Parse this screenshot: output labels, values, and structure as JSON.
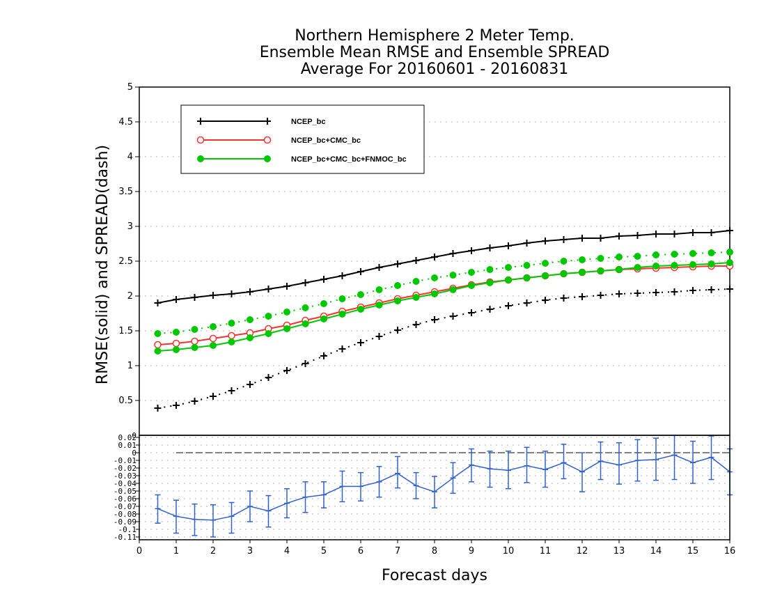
{
  "chart_data": [
    {
      "type": "line",
      "title_lines": [
        "Northern Hemisphere 2 Meter Temp.",
        "Ensemble Mean RMSE and Ensemble SPREAD",
        "Average For 20160601 - 20160831"
      ],
      "ylabel": "RMSE(solid)  and  SPREAD(dash)",
      "xlabel": "Forecast days",
      "ylim": [
        0,
        5
      ],
      "xlim": [
        0,
        16
      ],
      "yticks": [
        "0.5",
        "1",
        "1.5",
        "2",
        "2.5",
        "3",
        "3.5",
        "4",
        "4.5",
        "5"
      ],
      "xticks": [
        "0",
        "1",
        "2",
        "3",
        "4",
        "5",
        "6",
        "7",
        "8",
        "9",
        "10",
        "11",
        "12",
        "13",
        "14",
        "15",
        "16"
      ],
      "grid": true,
      "legend_position": "top-left",
      "x": [
        0.5,
        1,
        1.5,
        2,
        2.5,
        3,
        3.5,
        4,
        4.5,
        5,
        5.5,
        6,
        6.5,
        7,
        7.5,
        8,
        8.5,
        9,
        9.5,
        10,
        10.5,
        11,
        11.5,
        12,
        12.5,
        13,
        13.5,
        14,
        14.5,
        15,
        15.5,
        16
      ],
      "series": [
        {
          "name": "NCEP_bc",
          "color": "#000000",
          "marker": "plus",
          "rmse": [
            1.9,
            1.95,
            1.98,
            2.01,
            2.03,
            2.06,
            2.1,
            2.14,
            2.19,
            2.24,
            2.29,
            2.35,
            2.41,
            2.46,
            2.51,
            2.56,
            2.61,
            2.65,
            2.69,
            2.72,
            2.76,
            2.79,
            2.81,
            2.83,
            2.83,
            2.86,
            2.87,
            2.89,
            2.89,
            2.91,
            2.91,
            2.94
          ],
          "spread": [
            0.39,
            0.43,
            0.49,
            0.56,
            0.64,
            0.73,
            0.83,
            0.93,
            1.03,
            1.14,
            1.24,
            1.33,
            1.42,
            1.51,
            1.59,
            1.66,
            1.71,
            1.76,
            1.81,
            1.86,
            1.9,
            1.94,
            1.97,
            1.99,
            2.01,
            2.03,
            2.04,
            2.05,
            2.06,
            2.08,
            2.09,
            2.1
          ]
        },
        {
          "name": "NCEP_bc+CMC_bc",
          "color": "#ff3030",
          "marker": "open-circle",
          "rmse": [
            1.3,
            1.32,
            1.35,
            1.39,
            1.43,
            1.47,
            1.53,
            1.58,
            1.65,
            1.71,
            1.78,
            1.84,
            1.9,
            1.96,
            2.01,
            2.06,
            2.11,
            2.16,
            2.2,
            2.23,
            2.26,
            2.29,
            2.32,
            2.34,
            2.36,
            2.38,
            2.39,
            2.4,
            2.41,
            2.42,
            2.43,
            2.43
          ],
          "spread": []
        },
        {
          "name": "NCEP_bc+CMC_bc+FNMOC_bc",
          "color": "#00c800",
          "marker": "filled-circle",
          "rmse": [
            1.21,
            1.23,
            1.26,
            1.29,
            1.34,
            1.4,
            1.46,
            1.53,
            1.6,
            1.67,
            1.74,
            1.81,
            1.87,
            1.93,
            1.98,
            2.03,
            2.09,
            2.15,
            2.19,
            2.23,
            2.26,
            2.29,
            2.32,
            2.34,
            2.36,
            2.38,
            2.41,
            2.43,
            2.44,
            2.45,
            2.46,
            2.48
          ],
          "spread": [
            1.46,
            1.48,
            1.52,
            1.56,
            1.61,
            1.66,
            1.71,
            1.77,
            1.83,
            1.89,
            1.96,
            2.02,
            2.09,
            2.15,
            2.21,
            2.26,
            2.3,
            2.34,
            2.38,
            2.41,
            2.44,
            2.47,
            2.5,
            2.52,
            2.54,
            2.56,
            2.57,
            2.59,
            2.6,
            2.61,
            2.62,
            2.63
          ]
        }
      ]
    },
    {
      "type": "line",
      "ylim": [
        -0.11,
        0.02
      ],
      "yticks": [
        "-0.11",
        "-0.1",
        "-0.09",
        "-0.08",
        "-0.07",
        "-0.06",
        "-0.05",
        "-0.04",
        "-0.03",
        "-0.02",
        "-0.01",
        "0",
        "0.01",
        "0.02"
      ],
      "top_tick_label": "0",
      "grid": true,
      "series": [
        {
          "color": "#3060d0",
          "marker": "errorbar",
          "x": [
            0.5,
            1,
            1.5,
            2,
            2.5,
            3,
            3.5,
            4,
            4.5,
            5,
            5.5,
            6,
            6.5,
            7,
            7.5,
            8,
            8.5,
            9,
            9.5,
            10,
            10.5,
            11,
            11.5,
            12,
            12.5,
            13,
            13.5,
            14,
            14.5,
            15,
            15.5,
            16
          ],
          "values": [
            -0.073,
            -0.083,
            -0.087,
            -0.088,
            -0.083,
            -0.07,
            -0.076,
            -0.066,
            -0.058,
            -0.055,
            -0.044,
            -0.044,
            -0.038,
            -0.027,
            -0.043,
            -0.051,
            -0.033,
            -0.016,
            -0.021,
            -0.023,
            -0.017,
            -0.022,
            -0.013,
            -0.025,
            -0.011,
            -0.016,
            -0.01,
            -0.009,
            -0.003,
            -0.013,
            -0.006,
            -0.025
          ],
          "lower": [
            -0.092,
            -0.105,
            -0.108,
            -0.11,
            -0.105,
            -0.09,
            -0.097,
            -0.085,
            -0.078,
            -0.072,
            -0.064,
            -0.063,
            -0.058,
            -0.046,
            -0.06,
            -0.072,
            -0.053,
            -0.038,
            -0.045,
            -0.047,
            -0.039,
            -0.045,
            -0.034,
            -0.051,
            -0.035,
            -0.041,
            -0.037,
            -0.036,
            -0.035,
            -0.04,
            -0.035,
            -0.055
          ],
          "upper": [
            -0.055,
            -0.062,
            -0.067,
            -0.068,
            -0.065,
            -0.05,
            -0.056,
            -0.047,
            -0.038,
            -0.038,
            -0.024,
            -0.026,
            -0.018,
            -0.005,
            -0.026,
            -0.031,
            -0.013,
            0.005,
            0.002,
            0.002,
            0.007,
            0.002,
            0.011,
            0.0,
            0.014,
            0.013,
            0.017,
            0.019,
            0.029,
            0.015,
            0.022,
            0.005
          ]
        }
      ],
      "zero_line": true
    }
  ]
}
